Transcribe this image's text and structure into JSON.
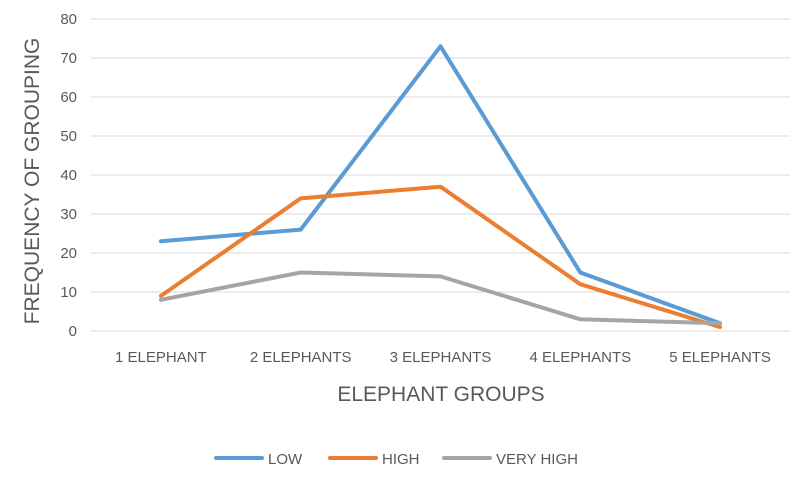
{
  "chart_data": {
    "type": "line",
    "title": "",
    "xlabel": "ELEPHANT GROUPS",
    "ylabel": "FREQUENCY OF GROUPING",
    "categories": [
      "1 ELEPHANT",
      "2 ELEPHANTS",
      "3 ELEPHANTS",
      "4 ELEPHANTS",
      "5 ELEPHANTS"
    ],
    "ylim": [
      0,
      80
    ],
    "yticks": [
      0,
      10,
      20,
      30,
      40,
      50,
      60,
      70,
      80
    ],
    "grid": true,
    "legend_position": "bottom",
    "series": [
      {
        "name": "LOW",
        "color": "#5B9BD5",
        "values": [
          23,
          26,
          73,
          15,
          2
        ]
      },
      {
        "name": "HIGH",
        "color": "#ED7D31",
        "values": [
          9,
          34,
          37,
          12,
          1
        ]
      },
      {
        "name": "VERY HIGH",
        "color": "#A5A5A5",
        "values": [
          8,
          15,
          14,
          3,
          2
        ]
      }
    ]
  }
}
